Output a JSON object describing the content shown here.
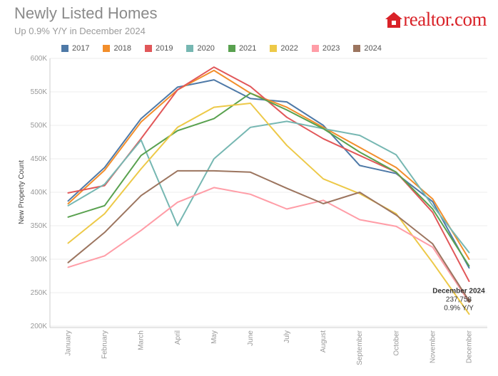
{
  "header": {
    "title": "Newly Listed Homes",
    "subtitle": "Up 0.9% Y/Y in December 2024"
  },
  "logo": {
    "text": "realtor.com",
    "icon": "house-icon",
    "color": "#d92228"
  },
  "chart_data": {
    "type": "line",
    "title": "Newly Listed Homes",
    "subtitle": "Up 0.9% Y/Y in December 2024",
    "xlabel": "",
    "ylabel": "New Property Count",
    "ylim": [
      200000,
      600000
    ],
    "y_ticks": [
      200000,
      250000,
      300000,
      350000,
      400000,
      450000,
      500000,
      550000,
      600000
    ],
    "y_tick_labels": [
      "200K",
      "250K",
      "300K",
      "350K",
      "400K",
      "450K",
      "500K",
      "550K",
      "600K"
    ],
    "legend_position": "top",
    "categories": [
      "January",
      "February",
      "March",
      "April",
      "May",
      "June",
      "July",
      "August",
      "September",
      "October",
      "November",
      "December"
    ],
    "series": [
      {
        "name": "2017",
        "color": "#4e79a7",
        "values": [
          387000,
          437000,
          510000,
          557000,
          568000,
          540000,
          535000,
          500000,
          440000,
          428000,
          386000,
          287000
        ]
      },
      {
        "name": "2018",
        "color": "#f28e2b",
        "values": [
          383000,
          433000,
          505000,
          553000,
          582000,
          548000,
          527000,
          497000,
          467000,
          437000,
          390000,
          300000
        ]
      },
      {
        "name": "2019",
        "color": "#e15759",
        "values": [
          399000,
          410000,
          480000,
          553000,
          587000,
          558000,
          512000,
          480000,
          455000,
          430000,
          370000,
          267000
        ]
      },
      {
        "name": "2020",
        "color": "#76b7b2",
        "values": [
          380000,
          412000,
          478000,
          350000,
          450000,
          497000,
          506000,
          495000,
          485000,
          456000,
          380000,
          310000
        ]
      },
      {
        "name": "2021",
        "color": "#59a14f",
        "values": [
          363000,
          380000,
          455000,
          492000,
          510000,
          548000,
          523000,
          495000,
          460000,
          430000,
          375000,
          290000
        ]
      },
      {
        "name": "2022",
        "color": "#edc948",
        "values": [
          324000,
          368000,
          435000,
          497000,
          527000,
          533000,
          470000,
          420000,
          398000,
          368000,
          295000,
          218000
        ]
      },
      {
        "name": "2023",
        "color": "#ff9da7",
        "values": [
          288000,
          305000,
          343000,
          385000,
          407000,
          397000,
          375000,
          388000,
          359000,
          349000,
          318000,
          236000
        ]
      },
      {
        "name": "2024",
        "color": "#9c755f",
        "values": [
          295000,
          340000,
          395000,
          432000,
          432000,
          430000,
          406000,
          383000,
          400000,
          366000,
          323000,
          237758
        ]
      }
    ],
    "annotation": {
      "series": "2024",
      "category": "December",
      "lines": [
        "December 2024",
        "237,758",
        "0.9% Y/Y"
      ]
    }
  }
}
